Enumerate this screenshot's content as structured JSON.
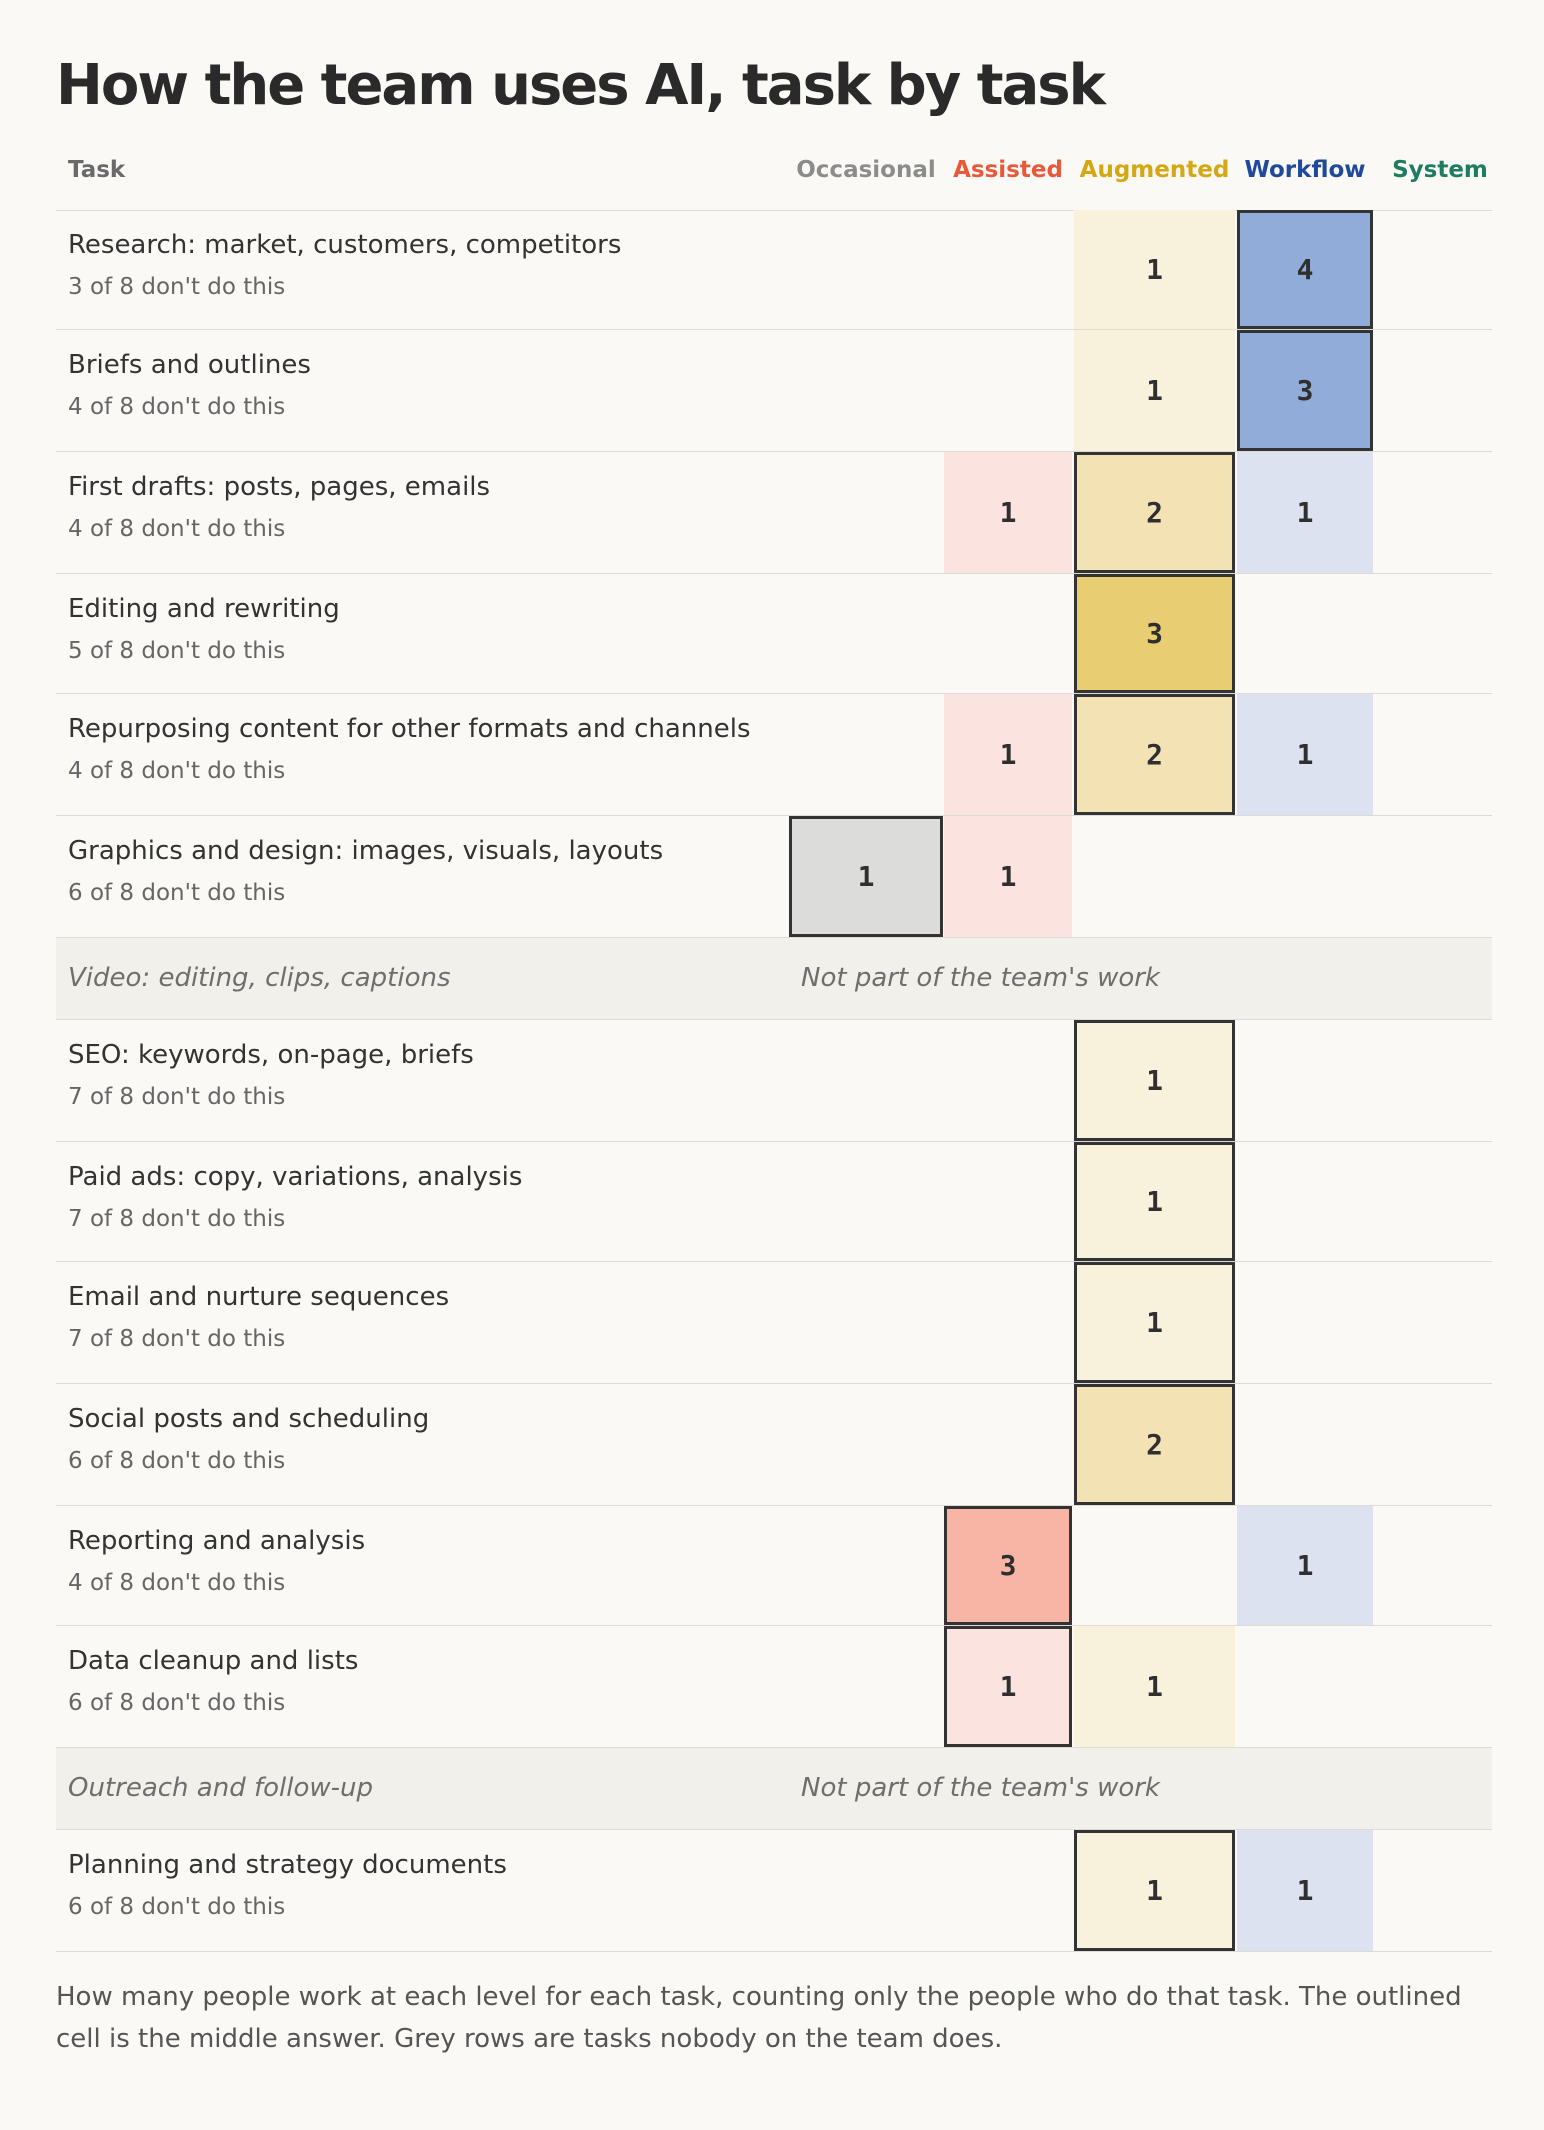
{
  "title": "How the team uses AI, task by task",
  "footnote": "How many people work at each level for each task, counting only the people who do that task. The outlined cell is the middle answer. Grey rows are tasks nobody on the team does.",
  "chart_data": {
    "type": "heatmap",
    "title": "How the team uses AI, task by task",
    "row_header": "Task",
    "levels": [
      {
        "name": "Occasional",
        "color": "#8c8c8c"
      },
      {
        "name": "Assisted",
        "color": "#e8593c"
      },
      {
        "name": "Augmented",
        "color": "#d4a713"
      },
      {
        "name": "Workflow",
        "color": "#1f4a9c"
      },
      {
        "name": "System",
        "color": "#1e7d60"
      }
    ],
    "cell_color_ramps": {
      "Occasional": [
        "#dcdcda",
        "#cfcfcc",
        "#bdbdba"
      ],
      "Assisted": [
        "#fbe4df",
        "#f9cfc4",
        "#f8b4a4"
      ],
      "Augmented": [
        "#f8f1dc",
        "#f2e2b4",
        "#e8cd72"
      ],
      "Workflow": [
        "#dce2ef",
        "#b3c5e2",
        "#91acd9"
      ],
      "System": [
        "#d9eee7",
        "#b4dccf",
        "#8ecbb7"
      ]
    },
    "rows": [
      {
        "task": "Research: market, customers, competitors",
        "note": "3 of 8 don't do this",
        "counts": [
          0,
          0,
          1,
          4,
          0
        ],
        "median": 3
      },
      {
        "task": "Briefs and outlines",
        "note": "4 of 8 don't do this",
        "counts": [
          0,
          0,
          1,
          3,
          0
        ],
        "median": 3
      },
      {
        "task": "First drafts: posts, pages, emails",
        "note": "4 of 8 don't do this",
        "counts": [
          0,
          1,
          2,
          1,
          0
        ],
        "median": 2
      },
      {
        "task": "Editing and rewriting",
        "note": "5 of 8 don't do this",
        "counts": [
          0,
          0,
          3,
          0,
          0
        ],
        "median": 2
      },
      {
        "task": "Repurposing content for other formats and channels",
        "note": "4 of 8 don't do this",
        "counts": [
          0,
          1,
          2,
          1,
          0
        ],
        "median": 2
      },
      {
        "task": "Graphics and design: images, visuals, layouts",
        "note": "6 of 8 don't do this",
        "counts": [
          1,
          1,
          0,
          0,
          0
        ],
        "median": 0
      },
      {
        "task": "Video: editing, clips, captions",
        "note": "Not part of the team's work",
        "counts": null,
        "median": null
      },
      {
        "task": "SEO: keywords, on-page, briefs",
        "note": "7 of 8 don't do this",
        "counts": [
          0,
          0,
          1,
          0,
          0
        ],
        "median": 2
      },
      {
        "task": "Paid ads: copy, variations, analysis",
        "note": "7 of 8 don't do this",
        "counts": [
          0,
          0,
          1,
          0,
          0
        ],
        "median": 2
      },
      {
        "task": "Email and nurture sequences",
        "note": "7 of 8 don't do this",
        "counts": [
          0,
          0,
          1,
          0,
          0
        ],
        "median": 2
      },
      {
        "task": "Social posts and scheduling",
        "note": "6 of 8 don't do this",
        "counts": [
          0,
          0,
          2,
          0,
          0
        ],
        "median": 2
      },
      {
        "task": "Reporting and analysis",
        "note": "4 of 8 don't do this",
        "counts": [
          0,
          3,
          0,
          1,
          0
        ],
        "median": 1
      },
      {
        "task": "Data cleanup and lists",
        "note": "6 of 8 don't do this",
        "counts": [
          0,
          1,
          1,
          0,
          0
        ],
        "median": 1
      },
      {
        "task": "Outreach and follow-up",
        "note": "Not part of the team's work",
        "counts": null,
        "median": null
      },
      {
        "task": "Planning and strategy documents",
        "note": "6 of 8 don't do this",
        "counts": [
          0,
          0,
          1,
          1,
          0
        ],
        "median": 2
      }
    ]
  }
}
